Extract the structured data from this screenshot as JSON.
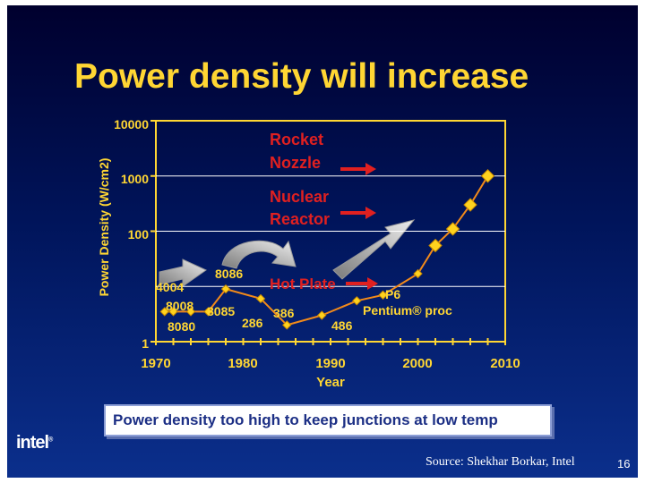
{
  "slide": {
    "title": "Power density will increase",
    "callout": "Power density too high to keep junctions at low temp",
    "logo": "intel",
    "logo_mark": "®",
    "source": "Source: Shekhar Borkar, Intel",
    "page_number": "16"
  },
  "colors": {
    "title": "#ffd633",
    "axis": "#ffd633",
    "series": "#f28a1a",
    "marker": "#ffd21e",
    "annotation": "#e02020",
    "arrow": "#d8d8d8",
    "callout_text": "#1c2f85"
  },
  "chart_data": {
    "type": "line",
    "title": "Power density will increase",
    "xlabel": "Year",
    "ylabel": "Power Density (W/cm2)",
    "x_ticks": [
      "1970",
      "1980",
      "1990",
      "2000",
      "2010"
    ],
    "y_ticks": [
      "1",
      "100",
      "1000",
      "10000"
    ],
    "xlim": [
      1970,
      2010
    ],
    "ylim": [
      1,
      10000
    ],
    "y_scale": "log",
    "grid": false,
    "series": [
      {
        "x": [
          1971,
          1972,
          1974,
          1976,
          1978,
          1982,
          1985,
          1989,
          1993,
          1996,
          2000,
          2002,
          2004,
          2006,
          2008
        ],
        "y": [
          3.5,
          3.5,
          3.5,
          3.5,
          9,
          6,
          2,
          3,
          5.5,
          7,
          17,
          55,
          110,
          300,
          1000
        ]
      }
    ],
    "processor_labels": [
      {
        "text": "4004",
        "year": 1971
      },
      {
        "text": "8008",
        "year": 1972
      },
      {
        "text": "8080",
        "year": 1974
      },
      {
        "text": "8085",
        "year": 1976
      },
      {
        "text": "8086",
        "year": 1978
      },
      {
        "text": "286",
        "year": 1982
      },
      {
        "text": "386",
        "year": 1985
      },
      {
        "text": "486",
        "year": 1989
      },
      {
        "text": "P6",
        "year": 1996
      },
      {
        "text": "Pentium® proc",
        "year": 1996
      }
    ],
    "reference_lines": [
      {
        "label": "Rocket",
        "label2": "Nozzle",
        "y": 1000
      },
      {
        "label": "Nuclear",
        "label2": "Reactor",
        "y": 100
      },
      {
        "label": "Hot Plate",
        "label2": "",
        "y": 10
      }
    ]
  }
}
